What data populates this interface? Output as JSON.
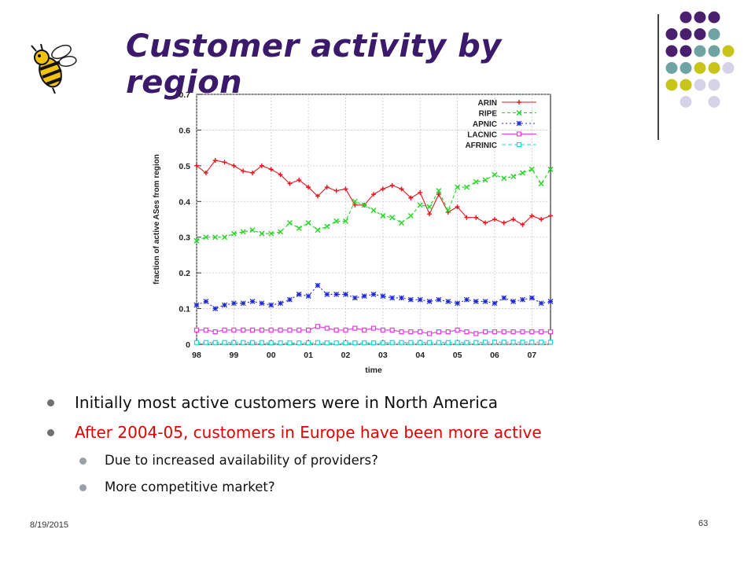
{
  "slide": {
    "title": "Customer activity by region",
    "date": "8/19/2015",
    "page_number": "63"
  },
  "bullets": [
    {
      "text": "Initially most active customers were in North America",
      "level": 1,
      "color": "#111111"
    },
    {
      "text": "After 2004-05, customers in Europe have been more active",
      "level": 1,
      "color": "#e00000"
    },
    {
      "text": "Due to increased availability of providers?",
      "level": 2,
      "color": "#111111"
    },
    {
      "text": "More competitive market?",
      "level": 2,
      "color": "#111111"
    }
  ],
  "decor": {
    "dot_colors": {
      "purple": "#4a1f6e",
      "teal": "#6fa3a3",
      "olive": "#c9c41a",
      "lavender": "#d6d3e8"
    },
    "logo": "bee-mascot-icon"
  },
  "chart_data": {
    "type": "line",
    "xlabel": "time",
    "ylabel": "fraction of active ASes from region",
    "xlim": [
      98,
      107.5
    ],
    "ylim": [
      0,
      0.7
    ],
    "x_ticks": [
      98,
      99,
      100,
      101,
      102,
      103,
      104,
      105,
      106,
      107
    ],
    "x_tick_labels": [
      "98",
      "99",
      "00",
      "01",
      "02",
      "03",
      "04",
      "05",
      "06",
      "07"
    ],
    "y_ticks": [
      0,
      0.1,
      0.2,
      0.3,
      0.4,
      0.5,
      0.6,
      0.7
    ],
    "y_tick_labels": [
      "0",
      "0.1",
      "0.2",
      "0.3",
      "0.4",
      "0.5",
      "0.6",
      "0.7"
    ],
    "grid": true,
    "legend_position": "top-right",
    "x": [
      98,
      98.25,
      98.5,
      98.75,
      99,
      99.25,
      99.5,
      99.75,
      100,
      100.25,
      100.5,
      100.75,
      101,
      101.25,
      101.5,
      101.75,
      102,
      102.25,
      102.5,
      102.75,
      103,
      103.25,
      103.5,
      103.75,
      104,
      104.25,
      104.5,
      104.75,
      105,
      105.25,
      105.5,
      105.75,
      106,
      106.25,
      106.5,
      106.75,
      107,
      107.25,
      107.5
    ],
    "series": [
      {
        "name": "ARIN",
        "color": "#e8141e",
        "marker": "plus",
        "dash": "",
        "values": [
          0.5,
          0.48,
          0.515,
          0.51,
          0.5,
          0.485,
          0.48,
          0.5,
          0.49,
          0.475,
          0.45,
          0.46,
          0.44,
          0.415,
          0.44,
          0.43,
          0.435,
          0.39,
          0.39,
          0.42,
          0.435,
          0.445,
          0.435,
          0.41,
          0.425,
          0.365,
          0.42,
          0.37,
          0.385,
          0.355,
          0.355,
          0.34,
          0.35,
          0.34,
          0.35,
          0.335,
          0.36,
          0.35,
          0.36
        ]
      },
      {
        "name": "RIPE",
        "color": "#22d822",
        "marker": "x",
        "dash": "4 3",
        "values": [
          0.29,
          0.3,
          0.3,
          0.3,
          0.31,
          0.315,
          0.32,
          0.31,
          0.31,
          0.315,
          0.34,
          0.325,
          0.34,
          0.32,
          0.33,
          0.345,
          0.345,
          0.4,
          0.39,
          0.375,
          0.36,
          0.355,
          0.34,
          0.36,
          0.39,
          0.385,
          0.43,
          0.375,
          0.44,
          0.44,
          0.455,
          0.46,
          0.475,
          0.465,
          0.47,
          0.48,
          0.49,
          0.45,
          0.49
        ]
      },
      {
        "name": "APNIC",
        "color": "#1e28d8",
        "marker": "star",
        "dash": "2 3",
        "values": [
          0.11,
          0.12,
          0.1,
          0.11,
          0.115,
          0.115,
          0.12,
          0.115,
          0.11,
          0.115,
          0.125,
          0.14,
          0.135,
          0.165,
          0.14,
          0.14,
          0.14,
          0.13,
          0.135,
          0.14,
          0.135,
          0.13,
          0.13,
          0.125,
          0.125,
          0.12,
          0.125,
          0.12,
          0.115,
          0.125,
          0.12,
          0.12,
          0.115,
          0.13,
          0.12,
          0.125,
          0.13,
          0.115,
          0.12
        ]
      },
      {
        "name": "LACNIC",
        "color": "#e838e8",
        "marker": "square",
        "dash": "",
        "values": [
          0.04,
          0.04,
          0.035,
          0.04,
          0.04,
          0.04,
          0.04,
          0.04,
          0.04,
          0.04,
          0.04,
          0.04,
          0.04,
          0.05,
          0.045,
          0.04,
          0.04,
          0.045,
          0.04,
          0.045,
          0.04,
          0.04,
          0.035,
          0.035,
          0.035,
          0.03,
          0.035,
          0.035,
          0.04,
          0.035,
          0.03,
          0.035,
          0.035,
          0.035,
          0.035,
          0.035,
          0.035,
          0.035,
          0.035
        ]
      },
      {
        "name": "AFRINIC",
        "color": "#18d8d8",
        "marker": "square",
        "dash": "5 3",
        "values": [
          0.005,
          0.005,
          0.005,
          0.005,
          0.005,
          0.005,
          0.005,
          0.005,
          0.004,
          0.004,
          0.004,
          0.004,
          0.004,
          0.005,
          0.004,
          0.004,
          0.004,
          0.004,
          0.004,
          0.004,
          0.004,
          0.005,
          0.005,
          0.005,
          0.005,
          0.005,
          0.005,
          0.005,
          0.005,
          0.005,
          0.005,
          0.006,
          0.006,
          0.006,
          0.006,
          0.006,
          0.006,
          0.006,
          0.006
        ]
      }
    ]
  }
}
